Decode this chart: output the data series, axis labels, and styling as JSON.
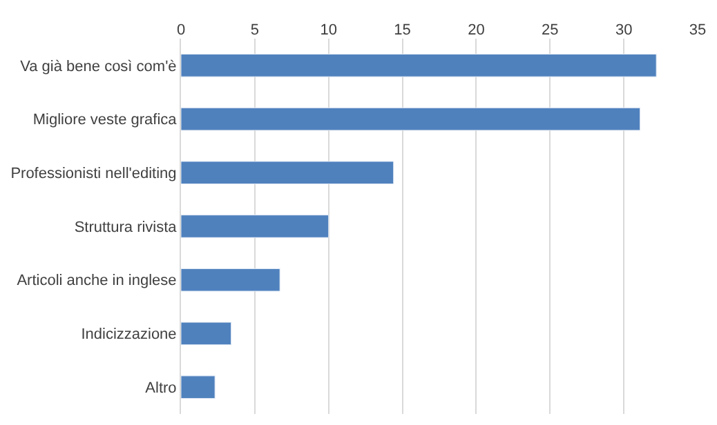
{
  "chart_data": {
    "type": "bar",
    "orientation": "horizontal",
    "categories": [
      "Va già bene così com'è",
      "Migliore veste grafica",
      "Professionisti nell'editing",
      "Struttura rivista",
      "Articoli anche in inglese",
      "Indicizzazione",
      "Altro"
    ],
    "values": [
      32.2,
      31.1,
      14.4,
      10.0,
      6.7,
      3.4,
      2.3
    ],
    "color": "#4f81bd",
    "xlim": [
      0,
      35
    ],
    "xticks": [
      0,
      5,
      10,
      15,
      20,
      25,
      30,
      35
    ],
    "grid": "x"
  }
}
